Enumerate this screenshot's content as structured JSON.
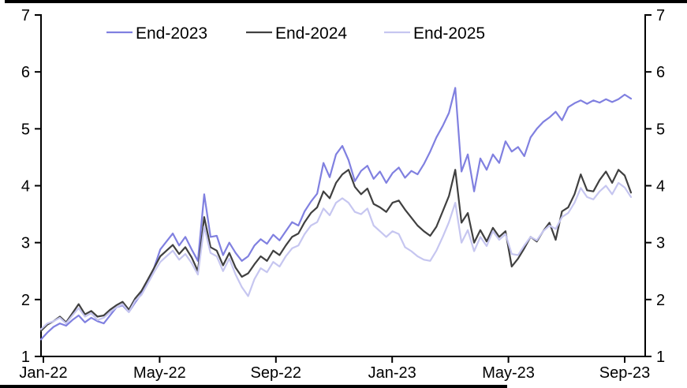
{
  "chart_data": {
    "type": "line",
    "title": "",
    "xlabel": "",
    "ylabel": "",
    "grid": false,
    "background_color": "#FFFFFF",
    "axis_color": "#000000",
    "legend": {
      "position": "top",
      "entries": [
        "End-2023",
        "End-2024",
        "End-2025"
      ]
    },
    "y_axis": {
      "min": 1,
      "max": 7,
      "tick_step": 1,
      "dual_sided": true,
      "tick_labels": [
        "1",
        "2",
        "3",
        "4",
        "5",
        "6",
        "7"
      ]
    },
    "x_axis": {
      "unit": "months-since-Jan-2022",
      "ticks": [
        {
          "label": "Jan-22",
          "month": 0
        },
        {
          "label": "May-22",
          "month": 4
        },
        {
          "label": "Sep-22",
          "month": 8
        },
        {
          "label": "Jan-23",
          "month": 12
        },
        {
          "label": "May-23",
          "month": 16
        },
        {
          "label": "Sep-23",
          "month": 20
        }
      ],
      "data_start_month": 0,
      "data_end_month": 20.2
    },
    "series": [
      {
        "name": "End-2023",
        "color": "#8080E0",
        "values": [
          1.3,
          1.42,
          1.52,
          1.58,
          1.54,
          1.64,
          1.72,
          1.6,
          1.68,
          1.62,
          1.58,
          1.72,
          1.86,
          1.9,
          1.78,
          1.95,
          2.1,
          2.32,
          2.55,
          2.88,
          3.02,
          3.16,
          2.95,
          3.1,
          2.88,
          2.68,
          3.85,
          3.1,
          3.12,
          2.78,
          3.0,
          2.82,
          2.68,
          2.76,
          2.95,
          3.06,
          2.98,
          3.14,
          3.04,
          3.2,
          3.36,
          3.3,
          3.55,
          3.72,
          3.86,
          4.4,
          4.15,
          4.55,
          4.7,
          4.45,
          4.08,
          4.26,
          4.35,
          4.12,
          4.25,
          4.05,
          4.22,
          4.32,
          4.14,
          4.26,
          4.2,
          4.38,
          4.6,
          4.85,
          5.05,
          5.28,
          5.72,
          4.25,
          4.55,
          3.9,
          4.48,
          4.28,
          4.55,
          4.4,
          4.78,
          4.6,
          4.68,
          4.52,
          4.85,
          5.0,
          5.12,
          5.2,
          5.3,
          5.15,
          5.38,
          5.45,
          5.5,
          5.44,
          5.5,
          5.46,
          5.52,
          5.47,
          5.52,
          5.6,
          5.53
        ]
      },
      {
        "name": "End-2024",
        "color": "#404040",
        "values": [
          1.45,
          1.56,
          1.62,
          1.7,
          1.6,
          1.76,
          1.92,
          1.74,
          1.8,
          1.7,
          1.72,
          1.82,
          1.9,
          1.96,
          1.82,
          2.02,
          2.15,
          2.35,
          2.55,
          2.76,
          2.86,
          2.96,
          2.8,
          2.92,
          2.74,
          2.5,
          3.45,
          2.92,
          2.86,
          2.6,
          2.82,
          2.56,
          2.4,
          2.46,
          2.62,
          2.76,
          2.68,
          2.86,
          2.78,
          2.95,
          3.1,
          3.16,
          3.36,
          3.52,
          3.62,
          3.9,
          3.78,
          4.05,
          4.2,
          4.28,
          3.98,
          3.85,
          3.95,
          3.68,
          3.62,
          3.54,
          3.7,
          3.74,
          3.58,
          3.44,
          3.3,
          3.2,
          3.12,
          3.28,
          3.55,
          3.82,
          4.28,
          3.35,
          3.52,
          3.0,
          3.22,
          3.02,
          3.26,
          3.1,
          3.2,
          2.58,
          2.72,
          2.9,
          3.1,
          3.02,
          3.2,
          3.35,
          3.05,
          3.55,
          3.62,
          3.85,
          4.2,
          3.92,
          3.9,
          4.1,
          4.25,
          4.05,
          4.28,
          4.18,
          3.88
        ]
      },
      {
        "name": "End-2025",
        "color": "#C6C6F0",
        "values": [
          1.48,
          1.58,
          1.62,
          1.68,
          1.58,
          1.72,
          1.85,
          1.7,
          1.76,
          1.64,
          1.68,
          1.78,
          1.86,
          1.92,
          1.78,
          1.98,
          2.08,
          2.28,
          2.48,
          2.66,
          2.76,
          2.86,
          2.7,
          2.8,
          2.64,
          2.44,
          3.28,
          2.82,
          2.76,
          2.5,
          2.72,
          2.44,
          2.22,
          2.06,
          2.36,
          2.55,
          2.48,
          2.66,
          2.58,
          2.76,
          2.9,
          2.95,
          3.15,
          3.3,
          3.36,
          3.6,
          3.48,
          3.7,
          3.78,
          3.7,
          3.54,
          3.5,
          3.6,
          3.3,
          3.2,
          3.1,
          3.2,
          3.15,
          2.92,
          2.85,
          2.76,
          2.7,
          2.68,
          2.86,
          3.1,
          3.36,
          3.7,
          3.0,
          3.22,
          2.85,
          3.1,
          2.94,
          3.2,
          3.05,
          3.15,
          2.8,
          2.78,
          2.95,
          3.1,
          3.04,
          3.2,
          3.3,
          3.24,
          3.45,
          3.52,
          3.7,
          3.96,
          3.8,
          3.76,
          3.9,
          4.0,
          3.85,
          4.05,
          3.97,
          3.8
        ]
      }
    ]
  }
}
